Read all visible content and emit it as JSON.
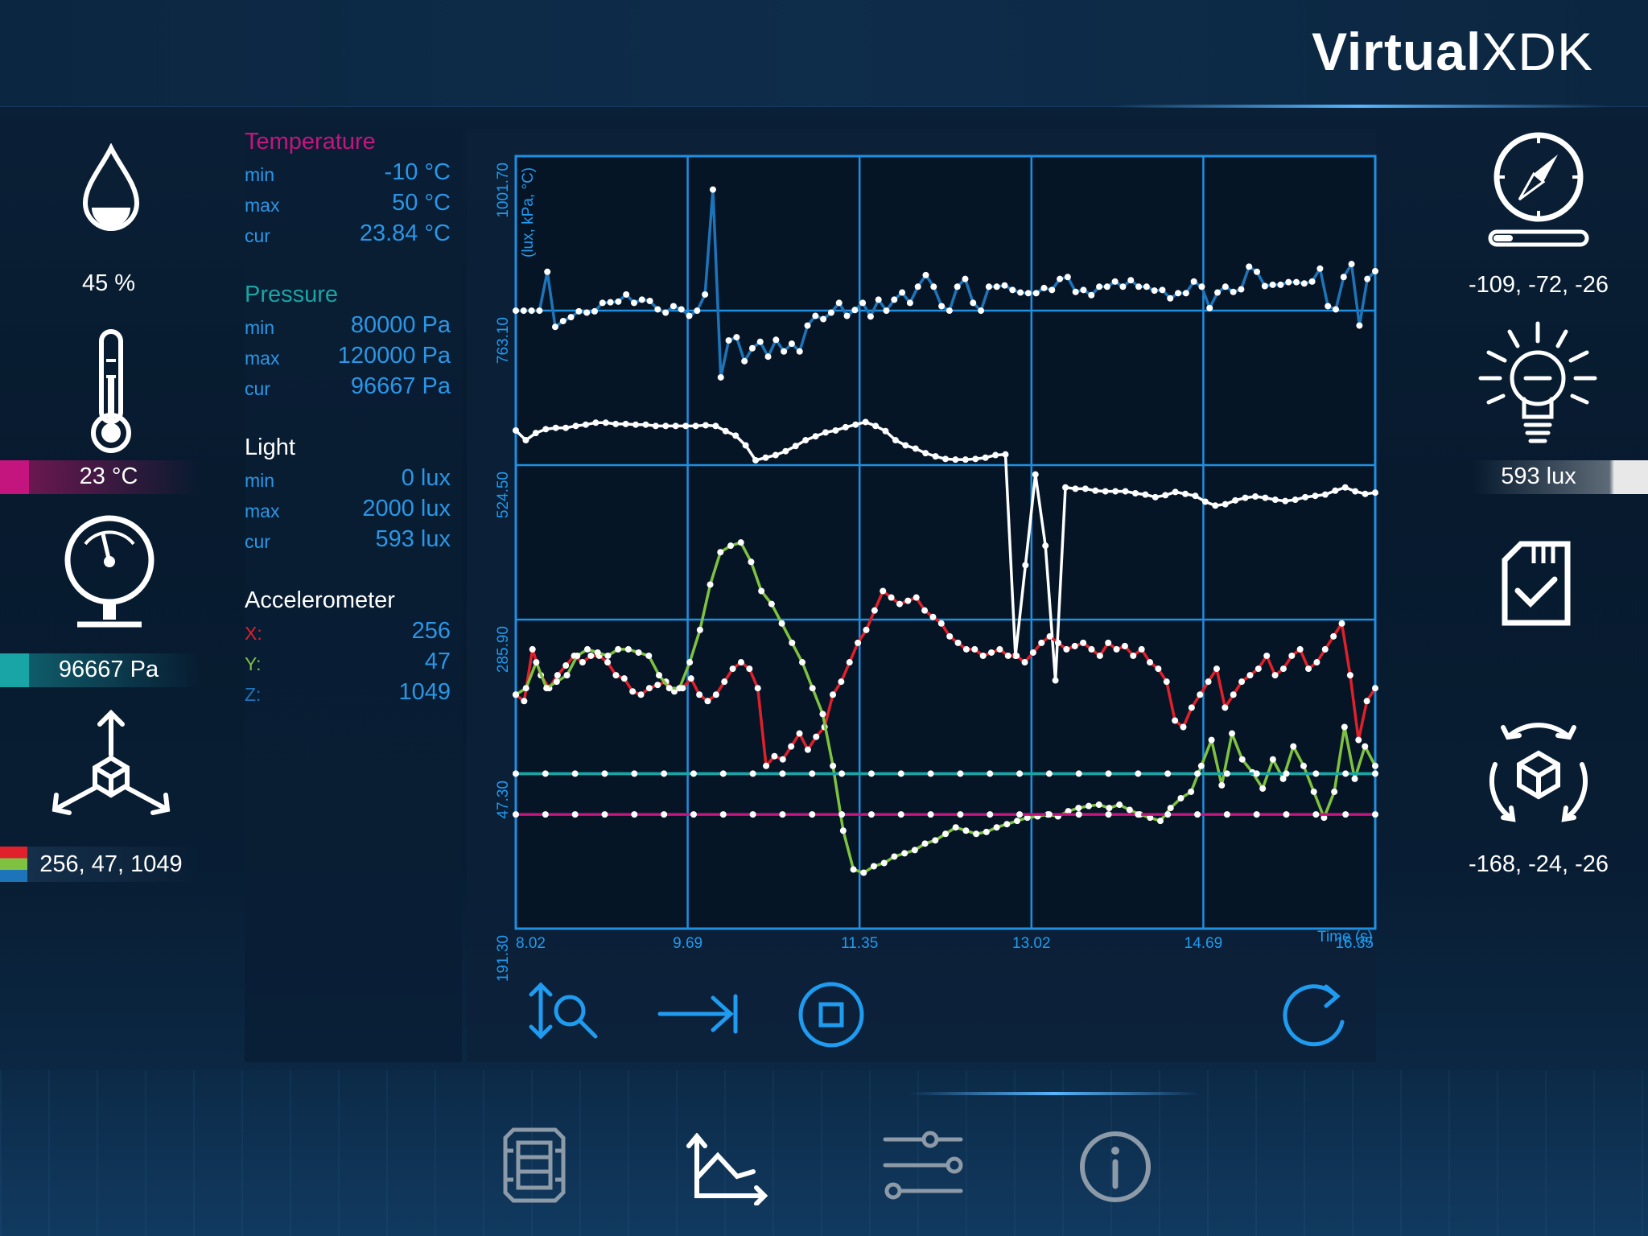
{
  "brand": {
    "bold": "Virtual",
    "regular": "XDK"
  },
  "left": {
    "humidity": "45 %",
    "temperature": "23 °C",
    "pressure": "96667 Pa",
    "accelerometer": "256, 47, 1049"
  },
  "right": {
    "magnetometer": "-109, -72, -26",
    "light": "593 lux",
    "gyroscope": "-168, -24, -26"
  },
  "stats": {
    "temperature": {
      "title": "Temperature",
      "min_label": "min",
      "min": "-10 °C",
      "max_label": "max",
      "max": "50 °C",
      "cur_label": "cur",
      "cur": "23.84 °C"
    },
    "pressure": {
      "title": "Pressure",
      "min_label": "min",
      "min": "80000 Pa",
      "max_label": "max",
      "max": "120000 Pa",
      "cur_label": "cur",
      "cur": "96667 Pa"
    },
    "light": {
      "title": "Light",
      "min_label": "min",
      "min": "0 lux",
      "max_label": "max",
      "max": "2000 lux",
      "cur_label": "cur",
      "cur": "593 lux"
    },
    "accelerometer": {
      "title": "Accelerometer",
      "x_label": "X:",
      "x": "256",
      "y_label": "Y:",
      "y": "47",
      "z_label": "Z:",
      "z": "1049"
    }
  },
  "colors": {
    "temperature": "#c4157f",
    "pressure": "#19a5a5",
    "light": "#ffffff",
    "accel_x": "#e0202a",
    "accel_y": "#7fc241",
    "accel_z": "#1d74b8",
    "accent": "#1f9bf0"
  },
  "chart_data": {
    "type": "line",
    "xlabel": "Time (s)",
    "ylabel": "(lux, kPa, °C)",
    "x_ticks": [
      "8.02",
      "9.69",
      "11.35",
      "13.02",
      "14.69",
      "16.35"
    ],
    "y_ticks": [
      "1001.70",
      "763.10",
      "524.50",
      "285.90",
      "47.30",
      "-191.30"
    ],
    "xlim": [
      8.02,
      16.35
    ],
    "ylim": [
      -191.3,
      1001.7
    ],
    "grid": true,
    "series": [
      {
        "color": "#1d74b8",
        "y": [
          763,
          763,
          763,
          763,
          823,
          738,
          747,
          753,
          762,
          760,
          762,
          775,
          776,
          777,
          788,
          775,
          780,
          778,
          765,
          760,
          770,
          765,
          755,
          763,
          788,
          950,
          660,
          717,
          722,
          685,
          705,
          715,
          692,
          718,
          700,
          712,
          700,
          740,
          755,
          750,
          760,
          775,
          755,
          764,
          775,
          754,
          780,
          763,
          780,
          791,
          775,
          800,
          818,
          800,
          770,
          763,
          800,
          812,
          775,
          763,
          800,
          800,
          802,
          795,
          791,
          790,
          790,
          798,
          795,
          812,
          815,
          792,
          795,
          787,
          800,
          800,
          808,
          800,
          810,
          800,
          800,
          794,
          795,
          782,
          790,
          790,
          808,
          800,
          767,
          791,
          800,
          792,
          796,
          831,
          823,
          801,
          803,
          803,
          807,
          807,
          805,
          808,
          828,
          770,
          765,
          815,
          835,
          740,
          812,
          824
        ]
      },
      {
        "color": "#ffffff",
        "y": [
          578,
          563,
          574,
          580,
          582,
          582,
          585,
          587,
          590,
          590,
          588,
          588,
          587,
          587,
          585,
          585,
          585,
          585,
          585,
          586,
          585,
          577,
          570,
          555,
          532,
          536,
          540,
          546,
          554,
          563,
          569,
          575,
          578,
          583,
          587,
          591,
          585,
          577,
          563,
          555,
          550,
          543,
          538,
          534,
          533,
          533,
          534,
          536,
          540,
          541,
          230,
          370,
          510,
          400,
          192,
          490,
          488,
          488,
          485,
          484,
          484,
          484,
          481,
          479,
          475,
          478,
          483,
          480,
          477,
          468,
          462,
          464,
          470,
          474,
          476,
          474,
          471,
          469,
          471,
          475,
          477,
          479,
          485,
          490,
          484,
          480,
          482
        ]
      },
      {
        "color": "#e0202a",
        "y": [
          170,
          160,
          240,
          200,
          180,
          200,
          215,
          230,
          220,
          230,
          230,
          220,
          200,
          195,
          175,
          170,
          180,
          185,
          190,
          175,
          180,
          195,
          170,
          160,
          170,
          190,
          210,
          220,
          210,
          180,
          60,
          75,
          70,
          90,
          110,
          85,
          105,
          120,
          170,
          190,
          220,
          250,
          270,
          300,
          330,
          320,
          310,
          315,
          320,
          300,
          290,
          280,
          260,
          250,
          240,
          240,
          230,
          235,
          240,
          230,
          230,
          220,
          235,
          250,
          260,
          250,
          240,
          245,
          250,
          240,
          230,
          250,
          240,
          245,
          230,
          240,
          220,
          210,
          190,
          130,
          120,
          150,
          170,
          190,
          210,
          150,
          170,
          190,
          200,
          210,
          230,
          200,
          210,
          230,
          240,
          210,
          220,
          240,
          260,
          280,
          200,
          100,
          160,
          180
        ]
      },
      {
        "color": "#7fc241",
        "y": [
          170,
          180,
          220,
          180,
          190,
          200,
          230,
          240,
          235,
          230,
          240,
          240,
          235,
          230,
          200,
          180,
          180,
          220,
          270,
          340,
          390,
          400,
          405,
          375,
          330,
          310,
          280,
          250,
          220,
          180,
          140,
          60,
          -40,
          -100,
          -105,
          -95,
          -90,
          -80,
          -75,
          -70,
          -60,
          -55,
          -45,
          -35,
          -40,
          -45,
          -42,
          -35,
          -30,
          -25,
          -20,
          -18,
          -15,
          -18,
          -10,
          -5,
          -2,
          0,
          -5,
          0,
          -8,
          -15,
          -20,
          -25,
          -5,
          10,
          20,
          60,
          100,
          30,
          110,
          70,
          50,
          25,
          70,
          40,
          90,
          60,
          20,
          -20,
          20,
          120,
          40,
          90,
          60
        ]
      },
      {
        "color": "#19a5a5",
        "y": [
          48,
          48,
          48,
          48,
          48,
          48,
          48,
          48,
          48,
          48,
          48,
          48,
          48,
          48,
          48,
          48,
          48,
          48,
          48,
          48,
          48,
          48,
          48,
          48,
          48,
          48,
          48,
          48,
          48,
          48
        ]
      },
      {
        "color": "#c4157f",
        "y": [
          -15,
          -15,
          -15,
          -15,
          -15,
          -15,
          -15,
          -15,
          -15,
          -15,
          -15,
          -15,
          -15,
          -15,
          -15,
          -15,
          -15,
          -15,
          -15,
          -15,
          -15,
          -15,
          -15,
          -15,
          -15,
          -15,
          -15,
          -15,
          -15,
          -15
        ]
      }
    ]
  }
}
